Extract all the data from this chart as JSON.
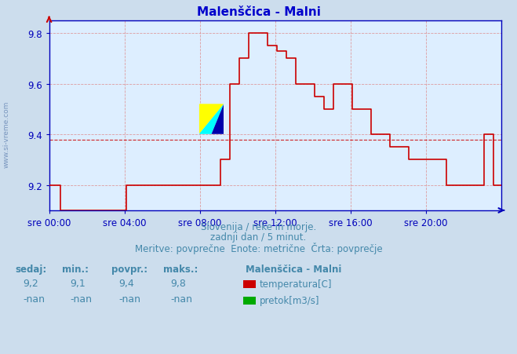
{
  "title": "Malenščica - Malni",
  "subtitle1": "Slovenija / reke in morje.",
  "subtitle2": "zadnji dan / 5 minut.",
  "subtitle3": "Meritve: povprečne  Enote: metrične  Črta: povprečje",
  "xlabel_ticks": [
    "sre 00:00",
    "sre 04:00",
    "sre 08:00",
    "sre 12:00",
    "sre 16:00",
    "sre 20:00"
  ],
  "ylabel_ticks": [
    9.2,
    9.4,
    9.6,
    9.8
  ],
  "ylim": [
    9.1,
    9.85
  ],
  "xlim": [
    0,
    288
  ],
  "avg_line": 9.38,
  "line_color": "#cc0000",
  "bg_color": "#ccdded",
  "plot_bg": "#ddeeff",
  "grid_color": "#dd8888",
  "title_color": "#0000cc",
  "axis_color": "#0000bb",
  "text_color": "#4488aa",
  "legend_station": "Malenščica - Malni",
  "legend_temp_label": "temperatura[C]",
  "legend_flow_label": "pretok[m3/s]",
  "legend_temp_color": "#cc0000",
  "legend_flow_color": "#00aa00",
  "stat_headers": [
    "sedaj:",
    "min.:",
    "povpr.:",
    "maks.:"
  ],
  "stat_temp": [
    "9,2",
    "9,1",
    "9,4",
    "9,8"
  ],
  "stat_flow": [
    "-nan",
    "-nan",
    "-nan",
    "-nan"
  ],
  "side_text": "www.si-vreme.com",
  "time_points": [
    0,
    6,
    7,
    12,
    48,
    49,
    96,
    97,
    108,
    109,
    114,
    115,
    120,
    121,
    126,
    127,
    132,
    133,
    138,
    139,
    144,
    145,
    150,
    151,
    156,
    157,
    162,
    163,
    168,
    169,
    174,
    175,
    180,
    181,
    192,
    193,
    204,
    205,
    216,
    217,
    228,
    229,
    240,
    241,
    252,
    253,
    264,
    265,
    276,
    277,
    282,
    283,
    288
  ],
  "temp_values": [
    9.2,
    9.2,
    9.1,
    9.1,
    9.1,
    9.2,
    9.2,
    9.2,
    9.2,
    9.3,
    9.3,
    9.6,
    9.6,
    9.7,
    9.7,
    9.8,
    9.8,
    9.8,
    9.8,
    9.75,
    9.75,
    9.73,
    9.73,
    9.7,
    9.7,
    9.6,
    9.6,
    9.6,
    9.6,
    9.55,
    9.55,
    9.5,
    9.5,
    9.6,
    9.6,
    9.5,
    9.5,
    9.4,
    9.4,
    9.35,
    9.35,
    9.3,
    9.3,
    9.3,
    9.3,
    9.2,
    9.2,
    9.2,
    9.2,
    9.4,
    9.4,
    9.2,
    9.2
  ]
}
